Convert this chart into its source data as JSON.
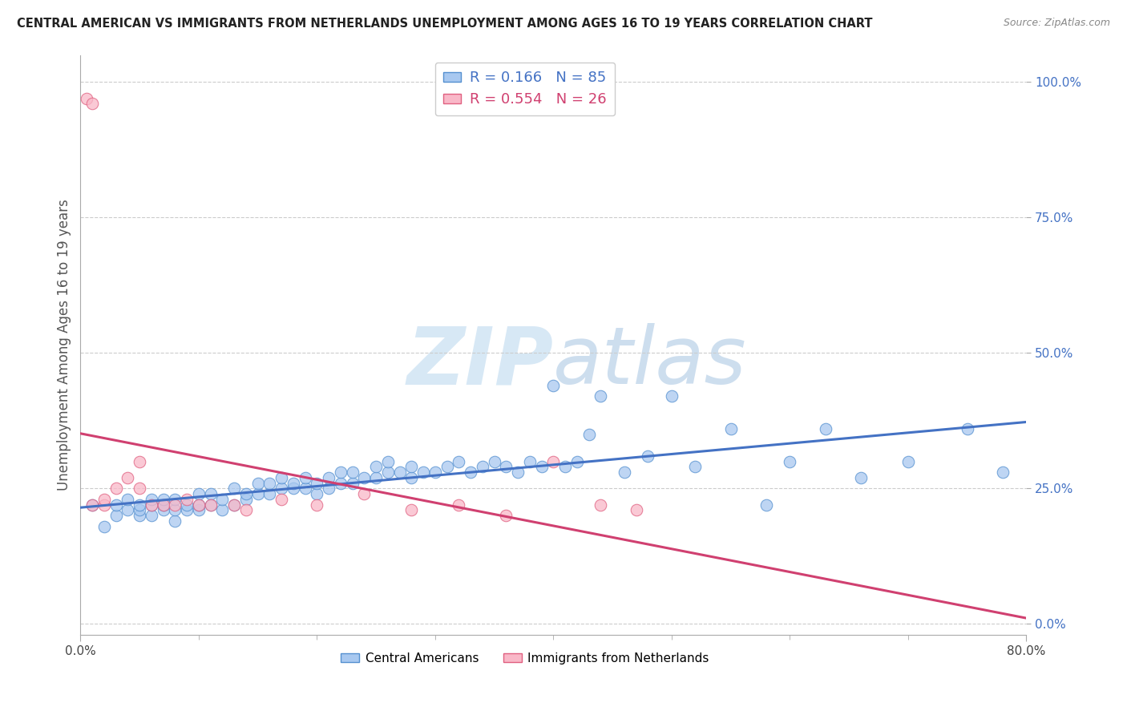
{
  "title": "CENTRAL AMERICAN VS IMMIGRANTS FROM NETHERLANDS UNEMPLOYMENT AMONG AGES 16 TO 19 YEARS CORRELATION CHART",
  "source": "Source: ZipAtlas.com",
  "ylabel": "Unemployment Among Ages 16 to 19 years",
  "xlim": [
    0.0,
    0.8
  ],
  "ylim": [
    -0.02,
    1.05
  ],
  "ytick_labels": [
    "0.0%",
    "25.0%",
    "50.0%",
    "75.0%",
    "100.0%"
  ],
  "ytick_values": [
    0.0,
    0.25,
    0.5,
    0.75,
    1.0
  ],
  "xtick_positions": [
    0.0,
    0.8
  ],
  "xtick_labels": [
    "0.0%",
    "80.0%"
  ],
  "blue_R": 0.166,
  "blue_N": 85,
  "pink_R": 0.554,
  "pink_N": 26,
  "blue_fill": "#A8C8F0",
  "pink_fill": "#F9B8C8",
  "blue_edge": "#5590D0",
  "pink_edge": "#E06080",
  "blue_line": "#4472C4",
  "pink_line": "#D04070",
  "legend_blue": "Central Americans",
  "legend_pink": "Immigrants from Netherlands",
  "watermark_text": "ZIPatlas",
  "watermark_color": "#D0E4F4",
  "blue_x": [
    0.01,
    0.02,
    0.03,
    0.03,
    0.04,
    0.04,
    0.05,
    0.05,
    0.05,
    0.06,
    0.06,
    0.06,
    0.07,
    0.07,
    0.07,
    0.08,
    0.08,
    0.08,
    0.09,
    0.09,
    0.1,
    0.1,
    0.1,
    0.11,
    0.11,
    0.12,
    0.12,
    0.13,
    0.13,
    0.14,
    0.14,
    0.15,
    0.15,
    0.16,
    0.16,
    0.17,
    0.17,
    0.18,
    0.18,
    0.19,
    0.19,
    0.2,
    0.2,
    0.21,
    0.21,
    0.22,
    0.22,
    0.23,
    0.23,
    0.24,
    0.25,
    0.25,
    0.26,
    0.26,
    0.27,
    0.28,
    0.28,
    0.29,
    0.3,
    0.31,
    0.32,
    0.33,
    0.34,
    0.35,
    0.36,
    0.37,
    0.38,
    0.39,
    0.4,
    0.41,
    0.42,
    0.43,
    0.44,
    0.46,
    0.48,
    0.5,
    0.52,
    0.55,
    0.58,
    0.6,
    0.63,
    0.66,
    0.7,
    0.75,
    0.78
  ],
  "blue_y": [
    0.22,
    0.18,
    0.2,
    0.22,
    0.21,
    0.23,
    0.2,
    0.21,
    0.22,
    0.2,
    0.22,
    0.23,
    0.21,
    0.22,
    0.23,
    0.19,
    0.21,
    0.23,
    0.21,
    0.22,
    0.21,
    0.22,
    0.24,
    0.22,
    0.24,
    0.21,
    0.23,
    0.22,
    0.25,
    0.23,
    0.24,
    0.24,
    0.26,
    0.24,
    0.26,
    0.25,
    0.27,
    0.25,
    0.26,
    0.25,
    0.27,
    0.24,
    0.26,
    0.27,
    0.25,
    0.26,
    0.28,
    0.26,
    0.28,
    0.27,
    0.27,
    0.29,
    0.28,
    0.3,
    0.28,
    0.27,
    0.29,
    0.28,
    0.28,
    0.29,
    0.3,
    0.28,
    0.29,
    0.3,
    0.29,
    0.28,
    0.3,
    0.29,
    0.44,
    0.29,
    0.3,
    0.35,
    0.42,
    0.28,
    0.31,
    0.42,
    0.29,
    0.36,
    0.22,
    0.3,
    0.36,
    0.27,
    0.3,
    0.36,
    0.28
  ],
  "pink_x": [
    0.005,
    0.01,
    0.01,
    0.02,
    0.02,
    0.03,
    0.04,
    0.05,
    0.05,
    0.06,
    0.07,
    0.08,
    0.09,
    0.1,
    0.11,
    0.13,
    0.14,
    0.17,
    0.2,
    0.24,
    0.28,
    0.32,
    0.36,
    0.4,
    0.44,
    0.47
  ],
  "pink_y": [
    0.97,
    0.96,
    0.22,
    0.22,
    0.23,
    0.25,
    0.27,
    0.3,
    0.25,
    0.22,
    0.22,
    0.22,
    0.23,
    0.22,
    0.22,
    0.22,
    0.21,
    0.23,
    0.22,
    0.24,
    0.21,
    0.22,
    0.2,
    0.3,
    0.22,
    0.21
  ]
}
